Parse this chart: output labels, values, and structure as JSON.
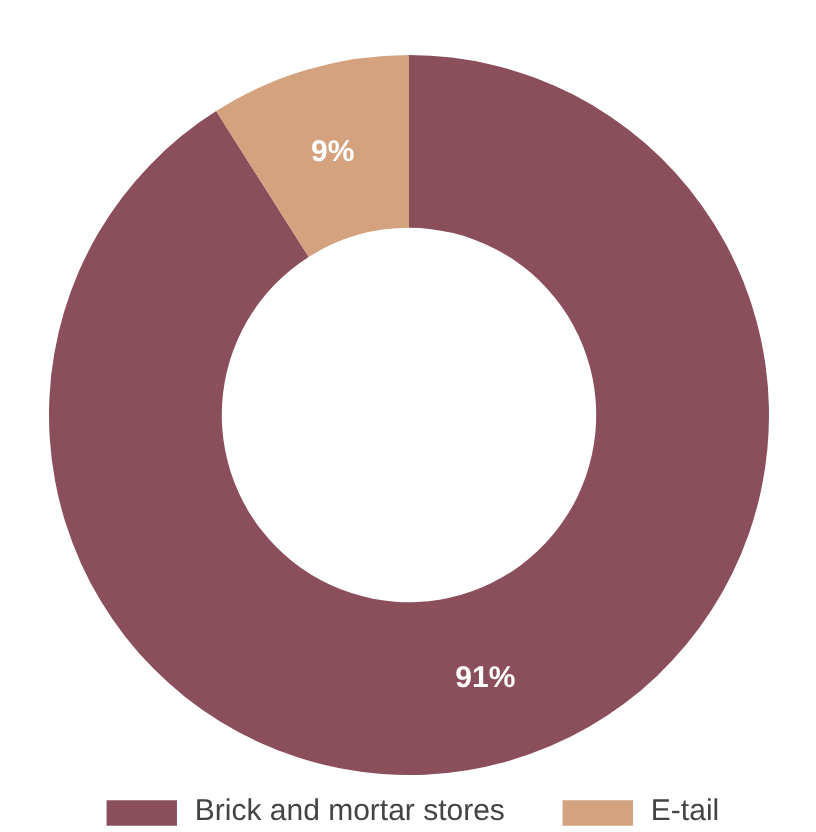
{
  "chart_data": {
    "type": "donut",
    "categories": [
      "Brick and mortar stores",
      "E-tail"
    ],
    "values": [
      91,
      9
    ],
    "colors": [
      "#8b4f5c",
      "#d4a27f"
    ],
    "value_labels": [
      "91%",
      "9%"
    ],
    "legend": "bottom"
  }
}
